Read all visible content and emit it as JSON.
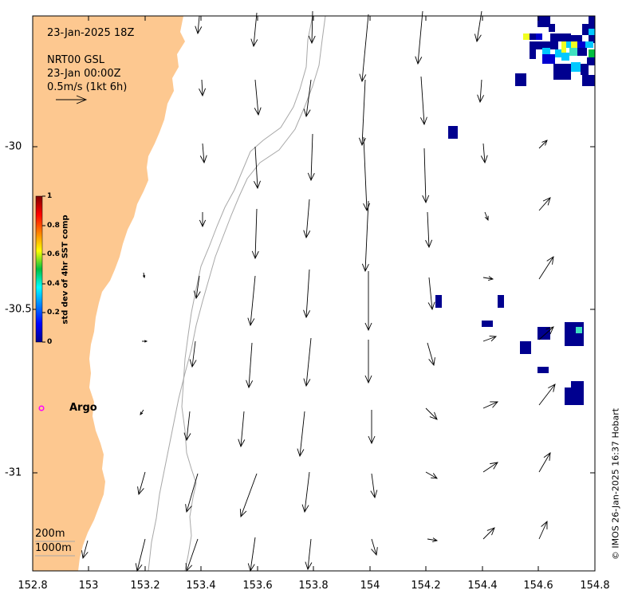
{
  "map": {
    "date_title": "23-Jan-2025 18Z",
    "product": "NRT00 GSL",
    "product_time": "23-Jan 00:00Z",
    "scale_label": "0.5m/s (1kt 6h)",
    "argo_label": "Argo",
    "contour_labels": [
      "200m",
      "1000m"
    ],
    "credit": "© IMOS 26-Jan-2025 16:37 Hobart",
    "colors": {
      "land": "#fdc890",
      "contour": "#a8a8a8",
      "argo": "#ff00ff"
    },
    "x_range": [
      152.8,
      154.8
    ],
    "y_range": [
      -31.3,
      -29.6
    ]
  },
  "x_ticks": [
    "152.8",
    "153",
    "153.2",
    "153.4",
    "153.6",
    "153.8",
    "154",
    "154.2",
    "154.4",
    "154.6",
    "154.8"
  ],
  "y_ticks": [
    "-30",
    "-30.5",
    "-31"
  ],
  "colorbar": {
    "title": "std dev of 4hr SST comp",
    "ticks": [
      "1",
      "0.8",
      "0.6",
      "0.4",
      "0.2",
      "0"
    ],
    "colormap": "jet",
    "range": [
      0,
      1
    ]
  }
}
